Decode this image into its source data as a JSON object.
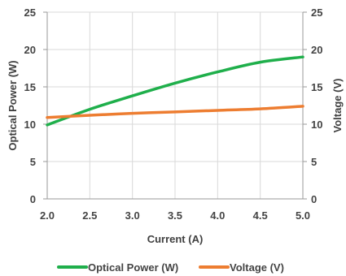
{
  "chart_data": {
    "type": "line",
    "title": "",
    "xlabel": "Current (A)",
    "ylabel_left": "Optical Power (W)",
    "ylabel_right": "Voltage (V)",
    "xlim": [
      2.0,
      5.0
    ],
    "ylim_left": [
      0,
      25
    ],
    "ylim_right": [
      0,
      25
    ],
    "x_ticks": [
      "2.0",
      "2.5",
      "3.0",
      "3.5",
      "4.0",
      "4.5",
      "5.0"
    ],
    "y_ticks_left": [
      "0",
      "5",
      "10",
      "15",
      "20",
      "25"
    ],
    "y_ticks_right": [
      "0",
      "5",
      "10",
      "15",
      "20",
      "25"
    ],
    "grid": true,
    "legend_position": "bottom",
    "x": [
      2.0,
      2.5,
      3.0,
      3.5,
      4.0,
      4.5,
      5.0
    ],
    "series": [
      {
        "name": "Optical Power (W)",
        "axis": "left",
        "color": "#1FAF4B",
        "values": [
          9.9,
          12.0,
          13.8,
          15.5,
          17.0,
          18.3,
          19.0
        ]
      },
      {
        "name": "Voltage (V)",
        "axis": "right",
        "color": "#ED7D31",
        "values": [
          10.9,
          11.2,
          11.45,
          11.65,
          11.85,
          12.05,
          12.4
        ]
      }
    ]
  }
}
